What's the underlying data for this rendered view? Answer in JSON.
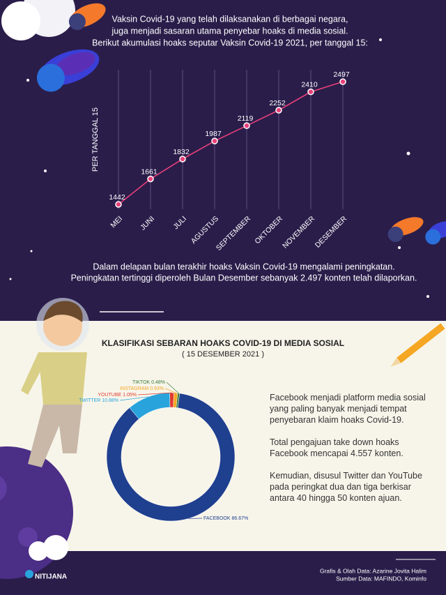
{
  "intro": [
    "Vaksin Covid-19 yang telah dilaksanakan di berbagai negara,",
    "juga menjadi sasaran utama penyebar hoaks di media sosial.",
    "Berikut akumulasi hoaks seputar Vaksin Covid-19 2021, per tanggal 15:"
  ],
  "chart_data": [
    {
      "type": "line",
      "y_label": "PER TANGGAL 15",
      "categories": [
        "MEI",
        "JUNI",
        "JULI",
        "AGUSTUS",
        "SEPTEMBER",
        "OKTOBER",
        "NOVEMBER",
        "DESEMBER"
      ],
      "values": [
        1442,
        1661,
        1832,
        1987,
        2119,
        2252,
        2410,
        2497
      ],
      "color": "#e8407a",
      "ylim": [
        1400,
        2600
      ]
    },
    {
      "type": "donut",
      "title": "KLASIFIKASI SEBARAN HOAKS COVID-19 DI MEDIA SOSIAL",
      "subtitle": "( 15 DESEMBER 2021 )",
      "categories": [
        "FACEBOOK",
        "TWITTER",
        "YOUTUBE",
        "INSTAGRAM",
        "TIKTOK"
      ],
      "values": [
        86.67,
        10.88,
        1.05,
        0.93,
        0.48
      ],
      "value_labels": [
        "86.67%",
        "10.88%",
        "1.05%",
        "0.93%",
        "0.48%"
      ],
      "colors": [
        "#1f3f8f",
        "#29a3dc",
        "#e03a2f",
        "#f5a623",
        "#3d7a3a"
      ]
    }
  ],
  "summary": [
    "Dalam delapan bulan terakhir hoaks Vaksin Covid-19  mengalami peningkatan.",
    "Peningkatan tertinggi diperoleh Bulan Desember sebanyak 2.497 konten telah dilaporkan."
  ],
  "notes": [
    "Facebook menjadi platform media sosial yang paling banyak menjadi tempat penyebaran klaim hoaks Covid-19.",
    "Total pengajuan take down hoaks Facebook mencapai 4.557 konten.",
    "Kemudian, disusul Twitter dan YouTube pada peringkat dua dan tiga berkisar antara 40 hingga 50 konten ajuan."
  ],
  "footer": {
    "logo": "NITIJANA",
    "credit": "Grafis & Olah Data: Azarine Jovita Halim",
    "source": "Sumber Data: MAFINDO, Kominfo"
  }
}
